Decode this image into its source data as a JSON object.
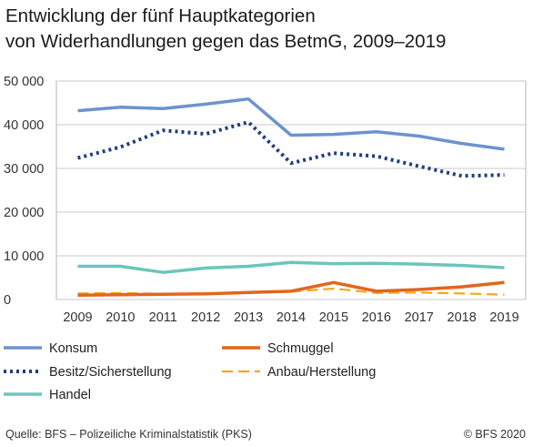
{
  "title_line1": "Entwicklung der fünf Hauptkategorien",
  "title_line2": "von Widerhandlungen gegen das BetmG, 2009–2019",
  "source": "Quelle: BFS – Polizeiliche Kriminalstatistik (PKS)",
  "copyright": "© BFS 2020",
  "chart_data": {
    "type": "line",
    "x": [
      2009,
      2010,
      2011,
      2012,
      2013,
      2014,
      2015,
      2016,
      2017,
      2018,
      2019
    ],
    "ylim": [
      0,
      50000
    ],
    "yticks": [
      0,
      10000,
      20000,
      30000,
      40000,
      50000
    ],
    "ytick_labels": [
      "0",
      "10 000",
      "20 000",
      "30 000",
      "40 000",
      "50 000"
    ],
    "grid": true,
    "legend_position": "bottom",
    "series": [
      {
        "name": "Konsum",
        "color": "#6b93cf",
        "style": "solid",
        "values": [
          43200,
          44000,
          43700,
          44700,
          45900,
          37600,
          37800,
          38400,
          37400,
          35700,
          34400
        ]
      },
      {
        "name": "Besitz/Sicherstellung",
        "color": "#1f3f7a",
        "style": "dotted",
        "values": [
          32400,
          34900,
          38700,
          37900,
          40600,
          31200,
          33500,
          32800,
          30500,
          28300,
          28500
        ]
      },
      {
        "name": "Handel",
        "color": "#6cc5bb",
        "style": "solid",
        "values": [
          7600,
          7600,
          6200,
          7200,
          7600,
          8500,
          8200,
          8300,
          8100,
          7800,
          7300
        ]
      },
      {
        "name": "Schmuggel",
        "color": "#e2661f",
        "style": "solid",
        "values": [
          1000,
          1100,
          1200,
          1300,
          1600,
          1900,
          3900,
          1900,
          2300,
          2900,
          3900
        ]
      },
      {
        "name": "Anbau/Herstellung",
        "color": "#f2a91a",
        "style": "dashed",
        "values": [
          1400,
          1500,
          1300,
          1400,
          1500,
          1800,
          2500,
          1500,
          1600,
          1400,
          1100
        ]
      }
    ]
  }
}
